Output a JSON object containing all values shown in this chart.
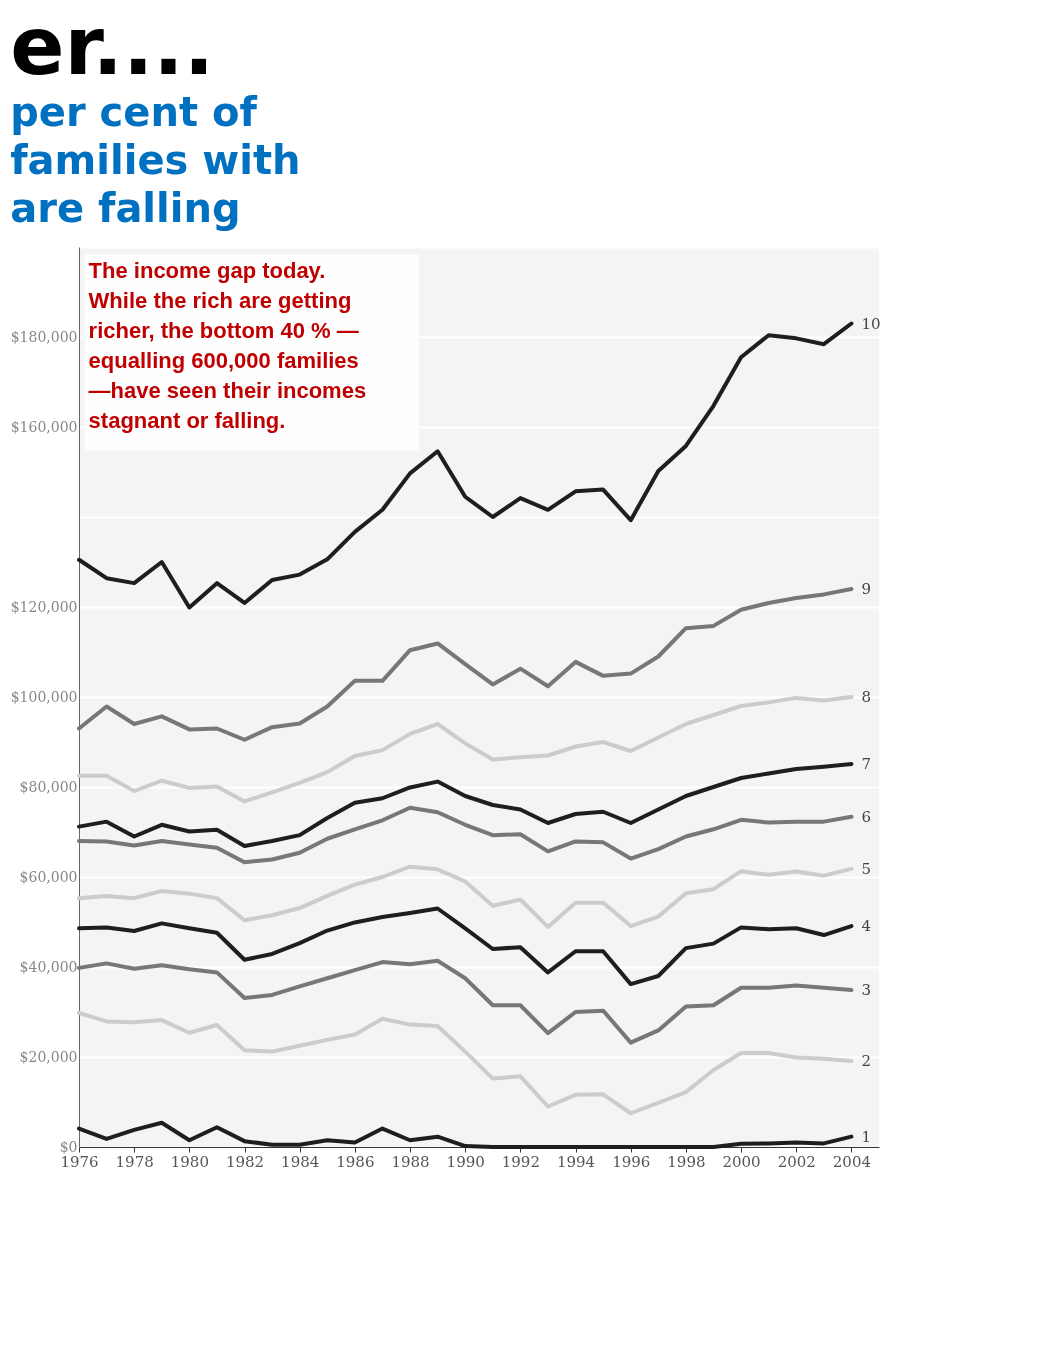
{
  "chart_data": {
    "type": "line",
    "title": "er....",
    "subtitle": "per cent of\nfamilies with\nare falling",
    "x": [
      1976,
      1977,
      1978,
      1979,
      1980,
      1981,
      1982,
      1983,
      1984,
      1985,
      1986,
      1987,
      1988,
      1989,
      1990,
      1991,
      1992,
      1993,
      1994,
      1995,
      1996,
      1997,
      1998,
      1999,
      2000,
      2001,
      2002,
      2003,
      2004
    ],
    "series": [
      {
        "name": "10",
        "color": "#1e1e1e",
        "values": [
          130500,
          126400,
          125300,
          130000,
          119900,
          125300,
          120900,
          126000,
          127200,
          130600,
          136700,
          141600,
          149700,
          154600,
          144500,
          140000,
          144200,
          141600,
          145700,
          146100,
          139300,
          150200,
          155800,
          164700,
          175500,
          180400,
          179700,
          178400,
          183000
        ]
      },
      {
        "name": "9",
        "color": "#777777",
        "values": [
          93000,
          97900,
          94000,
          95700,
          92800,
          93000,
          90500,
          93300,
          94100,
          97900,
          103600,
          103600,
          110400,
          111900,
          107300,
          102800,
          106300,
          102400,
          107800,
          104700,
          105200,
          109000,
          115300,
          115800,
          119400,
          120900,
          122000,
          122800,
          124000
        ]
      },
      {
        "name": "8",
        "color": "#cccccc",
        "values": [
          82500,
          82500,
          79100,
          81400,
          79800,
          80100,
          76800,
          78800,
          80900,
          83300,
          86900,
          88200,
          91800,
          94000,
          89700,
          86100,
          86600,
          87000,
          89000,
          90000,
          88000,
          91000,
          94000,
          96000,
          98000,
          98800,
          99800,
          99200,
          100000
        ]
      },
      {
        "name": "7",
        "color": "#1e1e1e",
        "values": [
          71200,
          72300,
          69000,
          71600,
          70100,
          70500,
          66900,
          68000,
          69300,
          73100,
          76500,
          77500,
          79900,
          81200,
          78000,
          76000,
          75000,
          72000,
          74000,
          74500,
          72000,
          75000,
          78000,
          80000,
          82000,
          83000,
          84000,
          84500,
          85100
        ]
      },
      {
        "name": "6",
        "color": "#777777",
        "values": [
          68000,
          67900,
          67000,
          68000,
          67200,
          66500,
          63300,
          63900,
          65400,
          68500,
          70600,
          72600,
          75400,
          74400,
          71600,
          69300,
          69500,
          65700,
          67900,
          67700,
          64100,
          66200,
          69000,
          70600,
          72700,
          72100,
          72300,
          72300,
          73400
        ]
      },
      {
        "name": "5",
        "color": "#cccccc",
        "values": [
          55300,
          55800,
          55300,
          56900,
          56300,
          55300,
          50400,
          51500,
          53100,
          55800,
          58300,
          60000,
          62300,
          61700,
          59000,
          53600,
          55000,
          48900,
          54300,
          54300,
          49100,
          51200,
          56400,
          57300,
          61300,
          60500,
          61200,
          60300,
          61800
        ]
      },
      {
        "name": "4",
        "color": "#1e1e1e",
        "values": [
          48600,
          48800,
          48000,
          49700,
          48600,
          47600,
          41600,
          42900,
          45300,
          48100,
          49900,
          51100,
          52000,
          53000,
          48600,
          44000,
          44400,
          38800,
          43500,
          43500,
          36200,
          38000,
          44200,
          45200,
          48800,
          48400,
          48600,
          47100,
          49100
        ]
      },
      {
        "name": "3",
        "color": "#777777",
        "values": [
          39800,
          40800,
          39600,
          40400,
          39500,
          38800,
          33100,
          33800,
          35700,
          37500,
          39300,
          41100,
          40600,
          41400,
          37500,
          31500,
          31500,
          25300,
          30000,
          30300,
          23200,
          25900,
          31200,
          31500,
          35400,
          35400,
          35900,
          35400,
          34900
        ]
      },
      {
        "name": "2",
        "color": "#cccccc",
        "values": [
          29800,
          27900,
          27700,
          28200,
          25400,
          27100,
          21500,
          21200,
          22500,
          23800,
          25000,
          28500,
          27200,
          26900,
          21200,
          15200,
          15700,
          9000,
          11600,
          11700,
          7500,
          9800,
          12200,
          17100,
          20900,
          20900,
          19900,
          19600,
          19100
        ]
      },
      {
        "name": "1",
        "color": "#1e1e1e",
        "values": [
          4100,
          1800,
          3800,
          5400,
          1500,
          4400,
          1300,
          500,
          500,
          1500,
          1000,
          4100,
          1500,
          2300,
          200,
          0,
          0,
          0,
          0,
          0,
          0,
          0,
          0,
          0,
          700,
          800,
          1000,
          800,
          2300
        ]
      }
    ],
    "xlim": [
      1976,
      2005
    ],
    "xticks": [
      1976,
      1978,
      1980,
      1982,
      1984,
      1986,
      1988,
      1990,
      1992,
      1994,
      1996,
      1998,
      2000,
      2002,
      2004
    ],
    "ylim": [
      0,
      200000
    ],
    "yticks": [
      {
        "value": 0,
        "label": "$0"
      },
      {
        "value": 20000,
        "label": "$20,000"
      },
      {
        "value": 40000,
        "label": "$40,000"
      },
      {
        "value": 60000,
        "label": "$60,000"
      },
      {
        "value": 80000,
        "label": "$80,000"
      },
      {
        "value": 100000,
        "label": "$100,000"
      },
      {
        "value": 120000,
        "label": "$120,000"
      },
      {
        "value": 140000,
        "label": null
      },
      {
        "value": 160000,
        "label": "$160,000"
      },
      {
        "value": 180000,
        "label": "$180,000"
      },
      {
        "value": 200000,
        "label": null
      }
    ],
    "annotations": [
      "The income gap today.\nWhile the rich are getting\nricher,  the bottom 40 % —\nequalling 600,000 families\n—have seen their incomes\nstagnant or falling."
    ],
    "grid": "y",
    "legend": false,
    "marker": "none",
    "line_style": "solid"
  }
}
